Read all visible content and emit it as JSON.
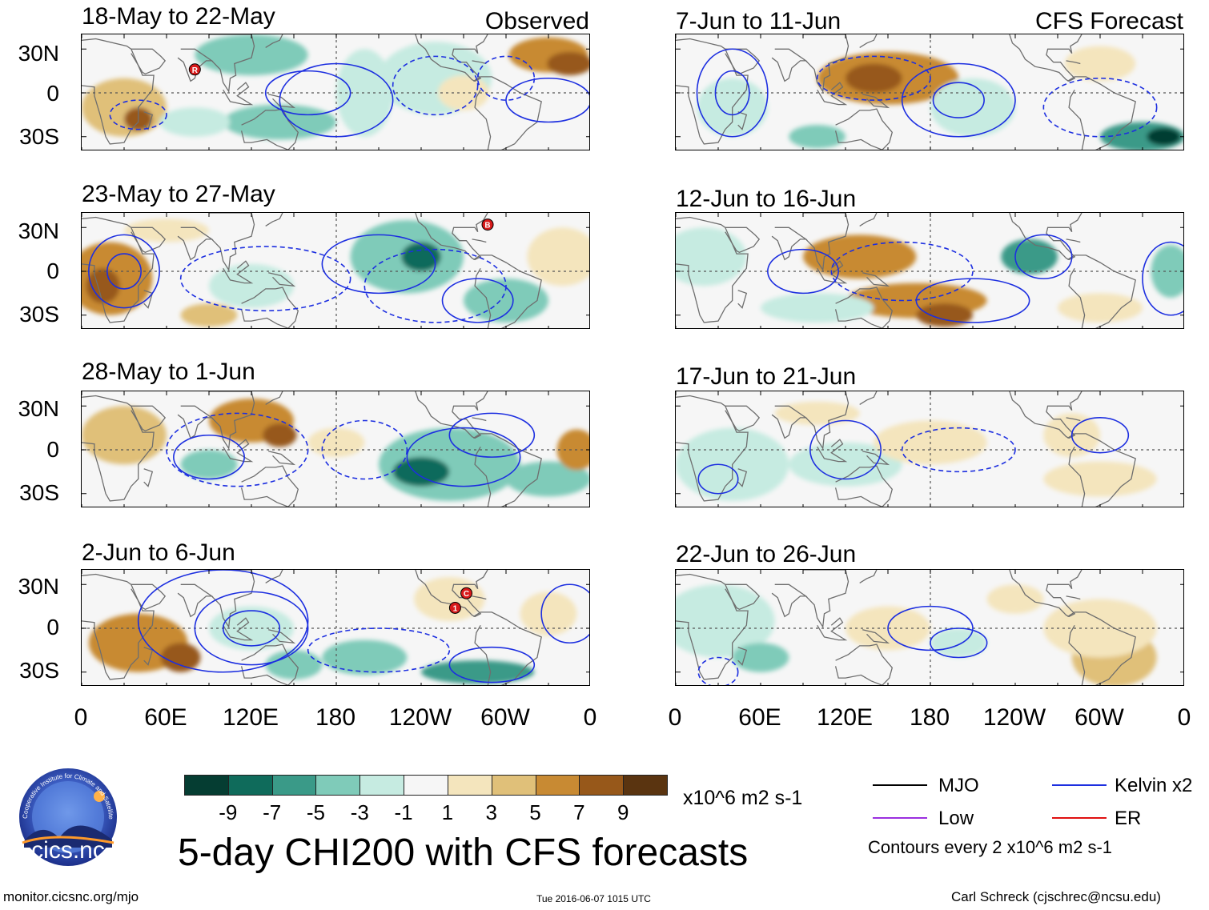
{
  "observed_label": "Observed",
  "forecast_label": "CFS Forecast",
  "observed_panels": [
    {
      "title": "18-May to 22-May",
      "markers": [
        {
          "label": "R",
          "lon": 80,
          "lat": 16
        }
      ]
    },
    {
      "title": "23-May to 27-May",
      "markers": [
        {
          "label": "B",
          "lon": 287,
          "lat": 32
        }
      ]
    },
    {
      "title": "28-May to 1-Jun",
      "markers": []
    },
    {
      "title": "2-Jun to 6-Jun",
      "markers": [
        {
          "label": "1",
          "lon": 264,
          "lat": 14
        },
        {
          "label": "C",
          "lon": 272,
          "lat": 24
        }
      ]
    }
  ],
  "forecast_panels": [
    {
      "title": "7-Jun to 11-Jun"
    },
    {
      "title": "12-Jun to 16-Jun"
    },
    {
      "title": "17-Jun to 21-Jun"
    },
    {
      "title": "22-Jun to 26-Jun"
    }
  ],
  "lat_labels": [
    "30N",
    "0",
    "30S"
  ],
  "lon_labels": [
    "0",
    "60E",
    "120E",
    "180",
    "120W",
    "60W",
    "0"
  ],
  "colorbar": {
    "colors": [
      "#053d32",
      "#0f6b5b",
      "#3a9a88",
      "#7fcbb9",
      "#c6ebe1",
      "#f6f6f6",
      "#f4e5bd",
      "#e0c079",
      "#c88a33",
      "#97581a",
      "#5a3410"
    ],
    "labels": [
      "-9",
      "-7",
      "-5",
      "-3",
      "-1",
      "1",
      "3",
      "5",
      "7",
      "9"
    ],
    "units": "x10^6 m2 s-1"
  },
  "legend": {
    "items": [
      {
        "label": "MJO",
        "color": "#000000"
      },
      {
        "label": "Kelvin x2",
        "color": "#1d2fe0"
      },
      {
        "label": "Low",
        "color": "#9b30e0"
      },
      {
        "label": "ER",
        "color": "#e01010"
      }
    ],
    "note": "Contours every 2 x10^6 m2 s-1"
  },
  "main_title": "5-day CHI200 with CFS forecasts",
  "logo_text": "cics.nc",
  "logo_ring_text": "Cooperative Institute for Climate and Satellites",
  "footer": {
    "url": "monitor.cicsnc.org/mjo",
    "timestamp": "Tue 2016-06-07 1015 UTC",
    "credit": "Carl Schreck (cjschrec@ncsu.edu)"
  }
}
